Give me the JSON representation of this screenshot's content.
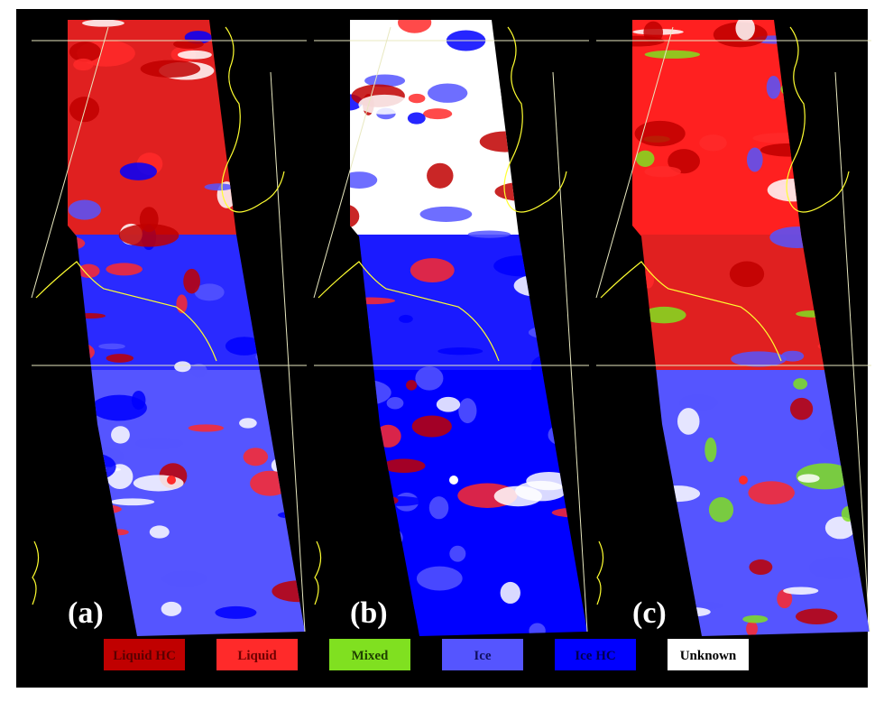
{
  "panels": [
    {
      "label": "(a)"
    },
    {
      "label": "(b)"
    },
    {
      "label": "(c)"
    }
  ],
  "legend": [
    {
      "name": "Liquid HC",
      "color": "#c00000",
      "text_color": "#5a0000"
    },
    {
      "name": "Liquid",
      "color": "#ff2a2a",
      "text_color": "#700000"
    },
    {
      "name": "Mixed",
      "color": "#80e020",
      "text_color": "#204000"
    },
    {
      "name": "Ice",
      "color": "#5555ff",
      "text_color": "#101060"
    },
    {
      "name": "Ice HC",
      "color": "#0000ff",
      "text_color": "#000050"
    },
    {
      "name": "Unknown",
      "color": "#ffffff",
      "text_color": "#000000"
    }
  ]
}
